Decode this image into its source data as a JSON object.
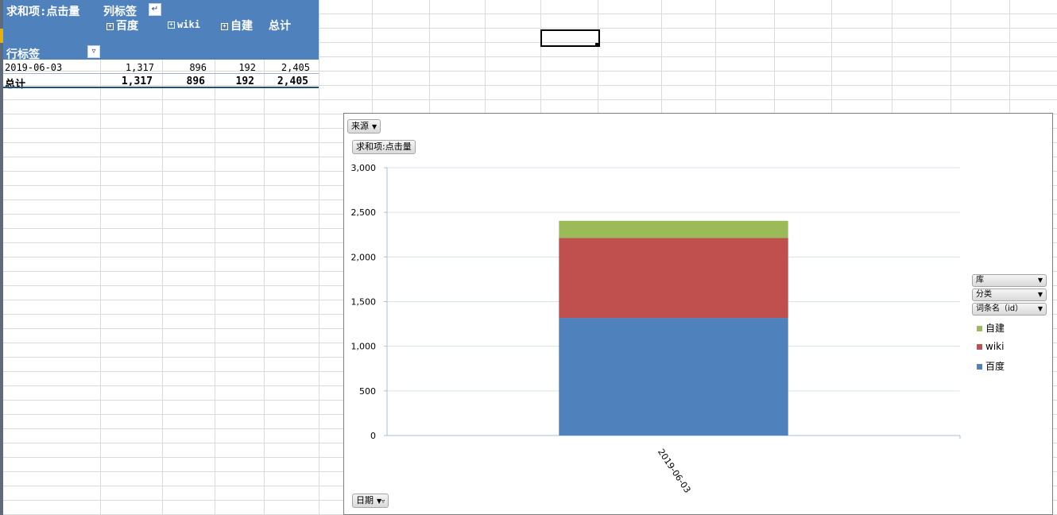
{
  "pivot": {
    "value_field": "求和项:点击量",
    "col_label": "列标签",
    "row_label": "行标签",
    "columns": [
      "百度",
      "wiki",
      "自建",
      "总计"
    ],
    "rows": [
      {
        "label": "2019-06-03",
        "values": [
          "1,317",
          "896",
          "192",
          "2,405"
        ]
      }
    ],
    "total": {
      "label": "总计",
      "values": [
        "1,317",
        "896",
        "192",
        "2,405"
      ]
    }
  },
  "chart": {
    "filter_source": "来源",
    "value_button": "求和项:点击量",
    "axis_field": "日期",
    "legend_fields": [
      "库",
      "分类",
      "词条名（id）"
    ],
    "colors": {
      "百度": "#4f81bd",
      "wiki": "#c0504d",
      "自建": "#9bbb59"
    }
  },
  "chart_data": {
    "type": "bar",
    "stacked": true,
    "categories": [
      "2019-06-03"
    ],
    "series": [
      {
        "name": "百度",
        "values": [
          1317
        ]
      },
      {
        "name": "wiki",
        "values": [
          896
        ]
      },
      {
        "name": "自建",
        "values": [
          192
        ]
      }
    ],
    "yticks": [
      "0",
      "500",
      "1,000",
      "1,500",
      "2,000",
      "2,500",
      "3,000"
    ],
    "ylim": [
      0,
      3000
    ],
    "legend_position": "right",
    "grid": true
  }
}
